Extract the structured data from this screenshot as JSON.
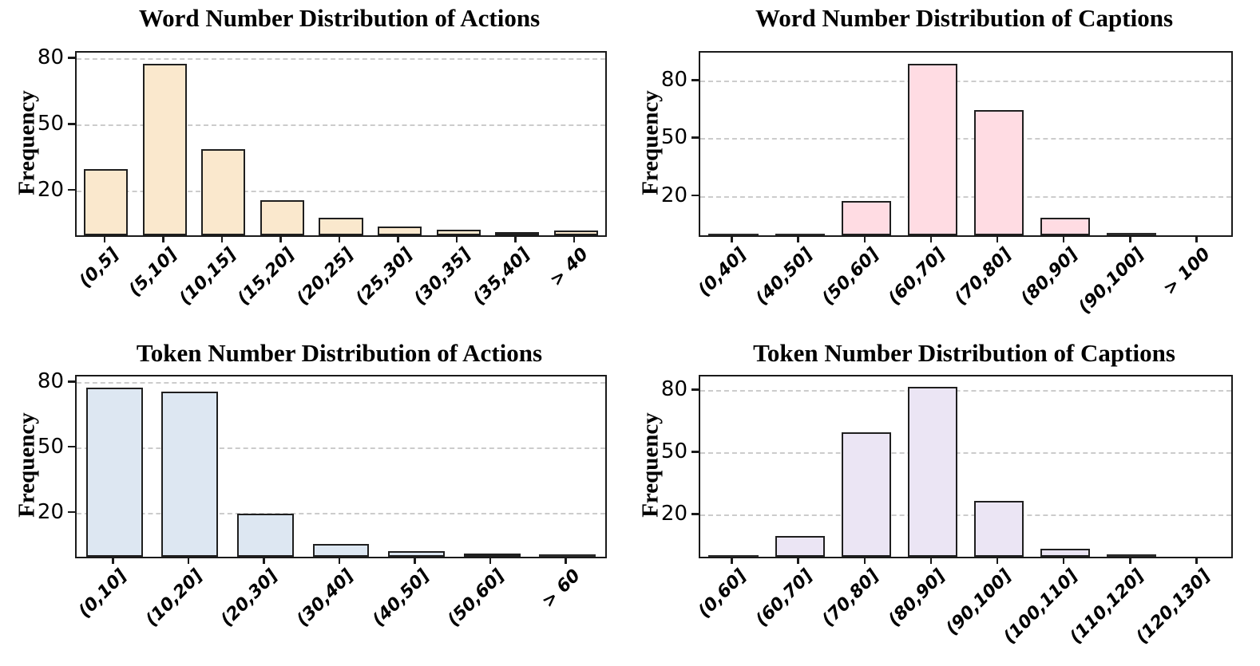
{
  "figure": {
    "background": "#ffffff",
    "axis_color": "#1a1a1a",
    "gridline_color": "#cccccc",
    "grid_style": "dashed-horizontal"
  },
  "chart_data": [
    {
      "id": "word-actions",
      "type": "bar",
      "title": "Word Number Distribution of Actions",
      "xlabel": "",
      "ylabel": "Frequency",
      "categories": [
        "(0,5]",
        "(5,10]",
        "(10,15]",
        "(15,20]",
        "(20,25]",
        "(25,30]",
        "(30,35]",
        "(35,40]",
        "> 40"
      ],
      "values": [
        30,
        78,
        39,
        16,
        8,
        4,
        2.5,
        1.5,
        2
      ],
      "yticks": [
        20,
        50,
        80
      ],
      "ylim": [
        0,
        83
      ],
      "bar_color": "#fae8cd",
      "edge_color": "#1f1f1f",
      "legend": "none"
    },
    {
      "id": "word-captions",
      "type": "bar",
      "title": "Word Number Distribution of Captions",
      "xlabel": "",
      "ylabel": "Frequency",
      "categories": [
        "(0,40]",
        "(40,50]",
        "(50,60]",
        "(60,70]",
        "(70,80]",
        "(80,90]",
        "(90,100]",
        "> 100"
      ],
      "values": [
        0.3,
        1,
        18,
        89,
        65,
        9,
        1.2,
        0
      ],
      "yticks": [
        20,
        50,
        80
      ],
      "ylim": [
        0,
        95
      ],
      "bar_color": "#ffdce3",
      "edge_color": "#1f1f1f",
      "legend": "none"
    },
    {
      "id": "token-actions",
      "type": "bar",
      "title": "Token Number Distribution of Actions",
      "xlabel": "",
      "ylabel": "Frequency",
      "categories": [
        "(0,10]",
        "(10,20]",
        "(20,30]",
        "(30,40]",
        "(40,50]",
        "(50,60]",
        "> 60"
      ],
      "values": [
        78,
        76,
        20,
        6,
        2.5,
        1.5,
        1
      ],
      "yticks": [
        20,
        50,
        80
      ],
      "ylim": [
        0,
        83
      ],
      "bar_color": "#dde7f2",
      "edge_color": "#1f1f1f",
      "legend": "none"
    },
    {
      "id": "token-captions",
      "type": "bar",
      "title": "Token Number Distribution of Captions",
      "xlabel": "",
      "ylabel": "Frequency",
      "categories": [
        "(0,60]",
        "(60,70]",
        "(70,80]",
        "(80,90]",
        "(90,100]",
        "(100,110]",
        "(110,120]",
        "(120,130]"
      ],
      "values": [
        0.7,
        10,
        60,
        82,
        27,
        4,
        1,
        0
      ],
      "yticks": [
        20,
        50,
        80
      ],
      "ylim": [
        0,
        87
      ],
      "bar_color": "#ebe5f4",
      "edge_color": "#1f1f1f",
      "legend": "none"
    }
  ]
}
